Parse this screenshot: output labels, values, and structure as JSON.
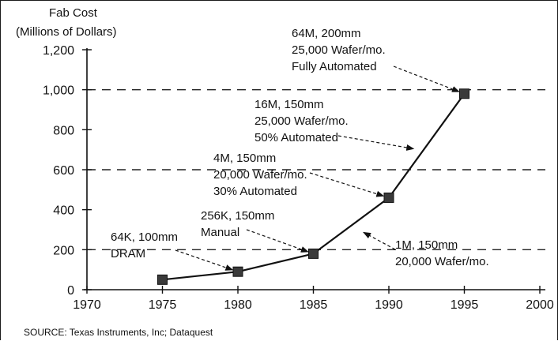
{
  "chart_data": {
    "type": "line",
    "ylabel_lines": [
      "Fab Cost",
      "(Millions of Dollars)"
    ],
    "xlabel": "",
    "x_ticks": [
      1970,
      1975,
      1980,
      1985,
      1990,
      1995,
      2000
    ],
    "y_ticks": [
      0,
      200,
      400,
      600,
      800,
      1000,
      1200
    ],
    "y_tick_labels": [
      "0",
      "200",
      "400",
      "600",
      "800",
      "1,000",
      "1,200"
    ],
    "xlim": [
      1970,
      2000
    ],
    "ylim": [
      0,
      1200
    ],
    "grid": "dashed horizontal lines at 200, 600, 1000",
    "gridlines_y": [
      200,
      600,
      1000
    ],
    "series": [
      {
        "x": [
          1975,
          1980,
          1985,
          1990,
          1995
        ],
        "values": [
          50,
          90,
          180,
          460,
          980
        ]
      }
    ],
    "annotations": [
      {
        "lines": [
          "64K, 100mm",
          "DRAM"
        ],
        "point": [
          1980,
          90
        ]
      },
      {
        "lines": [
          "256K, 150mm",
          "Manual"
        ],
        "point": [
          1985,
          180
        ]
      },
      {
        "lines": [
          "1M, 150mm",
          "20,000 Wafer/mo."
        ],
        "point": [
          1988,
          300
        ]
      },
      {
        "lines": [
          "4M, 150mm",
          "20,000 Wafer/mo.",
          "30% Automated"
        ],
        "point": [
          1990,
          460
        ]
      },
      {
        "lines": [
          "16M, 150mm",
          "25,000 Wafer/mo.",
          "50% Automated"
        ],
        "point": [
          1992,
          700
        ]
      },
      {
        "lines": [
          "64M, 200mm",
          "25,000 Wafer/mo.",
          "Fully Automated"
        ],
        "point": [
          1995,
          980
        ]
      }
    ],
    "source": "SOURCE: Texas Instruments, Inc; Dataquest"
  }
}
